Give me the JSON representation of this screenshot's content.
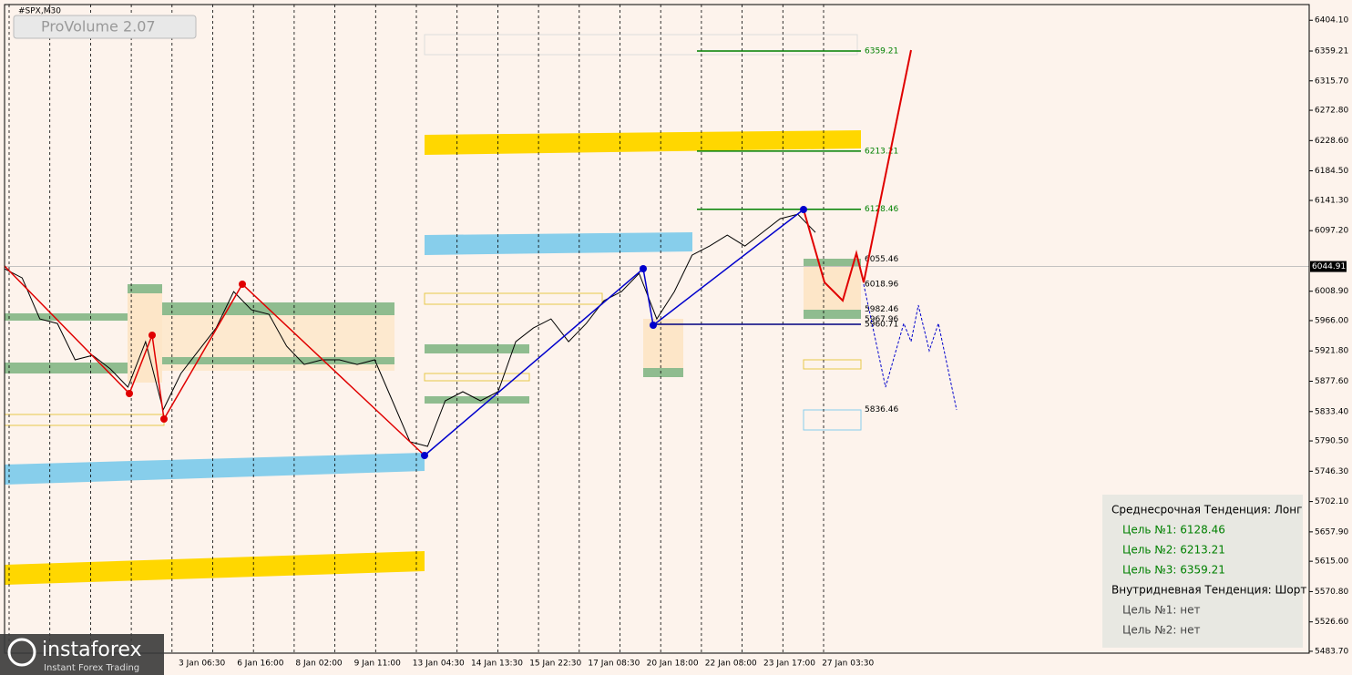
{
  "chart_data": {
    "type": "line",
    "symbol": "#SPX,M30",
    "indicator": "ProVolume 2.07",
    "color": "#000000",
    "values": [
      6041.6,
      6028.3,
      5968.5,
      5961.9,
      5908.8,
      5915.4,
      5895.5,
      5868.9,
      5935.3,
      5835.7,
      5888.8,
      5922.0,
      5955.2,
      6008.4,
      5981.8,
      5975.2,
      5928.7,
      5902.1,
      5908.8,
      5908.8,
      5902.1,
      5908.8,
      5849.0,
      5789.2,
      5782.6,
      5849.0,
      5862.3,
      5849.0,
      5862.3,
      5935.3,
      5955.2,
      5968.5,
      5935.3,
      5961.9,
      5995.1,
      6008.4,
      6034.9,
      5968.5,
      6008.4,
      6061.5,
      6074.8,
      6090.7,
      6074.8,
      6094.7,
      6114.6,
      6121.2,
      6094.7
    ],
    "x_tick_labels": [
      "3 Jan 06:30",
      "6 Jan 16:00",
      "8 Jan 02:00",
      "9 Jan 11:00",
      "13 Jan 04:30",
      "14 Jan 13:30",
      "15 Jan 22:30",
      "17 Jan 08:30",
      "20 Jan 18:00",
      "22 Jan 08:00",
      "23 Jan 17:00",
      "27 Jan 03:30"
    ],
    "ylim": [
      5481,
      6427
    ],
    "yticks": [
      {
        "value": 6404.1,
        "label": "6404.10"
      },
      {
        "value": 6359.21,
        "label": "6359.21"
      },
      {
        "value": 6315.7,
        "label": "6315.70"
      },
      {
        "value": 6272.8,
        "label": "6272.80"
      },
      {
        "value": 6228.6,
        "label": "6228.60"
      },
      {
        "value": 6184.5,
        "label": "6184.50"
      },
      {
        "value": 6141.3,
        "label": "6141.30"
      },
      {
        "value": 6097.2,
        "label": "6097.20"
      },
      {
        "value": 6008.9,
        "label": "6008.90"
      },
      {
        "value": 5966.0,
        "label": "5966.00"
      },
      {
        "value": 5921.8,
        "label": "5921.80"
      },
      {
        "value": 5877.6,
        "label": "5877.60"
      },
      {
        "value": 5833.4,
        "label": "5833.40"
      },
      {
        "value": 5790.5,
        "label": "5790.50"
      },
      {
        "value": 5746.3,
        "label": "5746.30"
      },
      {
        "value": 5702.1,
        "label": "5702.10"
      },
      {
        "value": 5657.9,
        "label": "5657.90"
      },
      {
        "value": 5615.0,
        "label": "5615.00"
      },
      {
        "value": 5570.8,
        "label": "5570.80"
      },
      {
        "value": 5526.6,
        "label": "5526.60"
      },
      {
        "value": 5483.7,
        "label": "5483.70"
      }
    ],
    "levels": [
      {
        "value": 6359.21,
        "color": "#008000"
      },
      {
        "value": 6213.21,
        "color": "#008000"
      },
      {
        "value": 6128.46,
        "color": "#008000"
      },
      {
        "value": 6055.46,
        "color": "#000000"
      },
      {
        "value": 6018.96,
        "color": "#000000"
      },
      {
        "value": 5982.46,
        "color": "#000000"
      },
      {
        "value": 5967.96,
        "color": "#000000"
      },
      {
        "value": 5960.71,
        "color": "#000080"
      },
      {
        "value": 5836.46,
        "color": "#000000"
      }
    ],
    "current_price": 6044.91
  },
  "panel": {
    "lines": [
      {
        "text": "Среднесрочная Тенденция: Лонг",
        "color": "#000000"
      },
      {
        "text": "Цель №1: 6128.46",
        "color": "#008000"
      },
      {
        "text": "Цель №2: 6213.21",
        "color": "#008000"
      },
      {
        "text": "Цель №3: 6359.21",
        "color": "#008000"
      },
      {
        "text": "Внутридневная Тенденция: Шорт",
        "color": "#000000"
      },
      {
        "text": "Цель №1: нет",
        "color": "#444444"
      },
      {
        "text": "Цель №2: нет",
        "color": "#444444"
      }
    ]
  },
  "logo": {
    "name": "instaforex",
    "tagline": "Instant Forex Trading"
  }
}
